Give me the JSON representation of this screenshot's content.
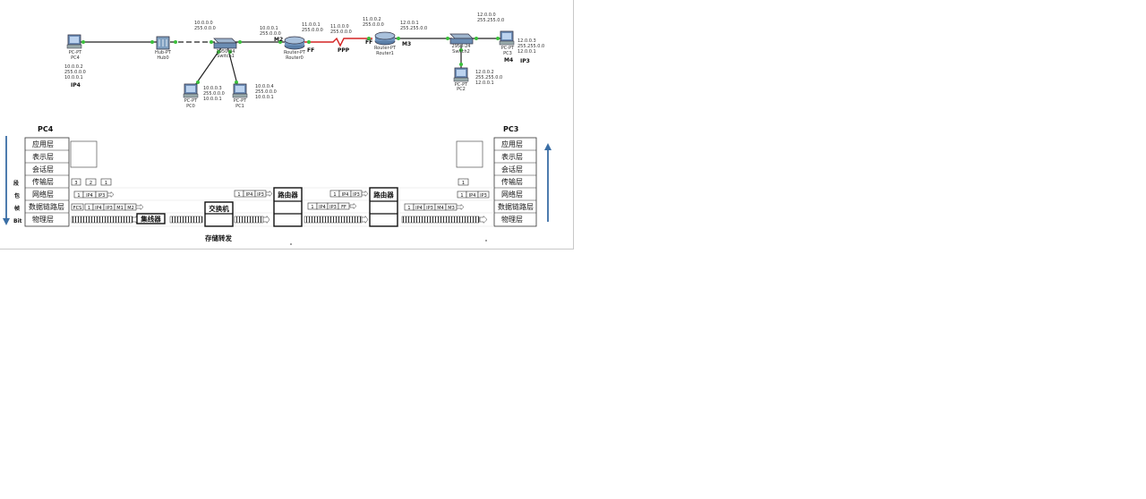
{
  "topology": {
    "devices": {
      "pc4": {
        "type": "PC-PT",
        "name": "PC4"
      },
      "hub0": {
        "type": "Hub-PT",
        "name": "Hub0"
      },
      "switch1": {
        "type": "2950-24",
        "name": "Switch1"
      },
      "pc0": {
        "type": "PC-PT",
        "name": "PC0"
      },
      "pc1": {
        "type": "PC-PT",
        "name": "PC1"
      },
      "router0": {
        "type": "Router-PT",
        "name": "Router0"
      },
      "router1": {
        "type": "Router-PT",
        "name": "Router1"
      },
      "switch2": {
        "type": "2950-24",
        "name": "Switch2"
      },
      "pc3": {
        "type": "PC-PT",
        "name": "PC3"
      },
      "pc2": {
        "type": "PC-PT",
        "name": "PC2"
      }
    },
    "labels": {
      "net10": [
        "10.0.0.0",
        "255.0.0.0"
      ],
      "pc4": [
        "10.0.0.2",
        "255.0.0.0",
        "10.0.0.1"
      ],
      "pc4_tag": "IP4",
      "pc0": [
        "10.0.0.3",
        "255.0.0.0",
        "10.0.0.1"
      ],
      "pc1": [
        "10.0.0.4",
        "255.0.0.0",
        "10.0.0.1"
      ],
      "r0_lan": [
        "10.0.0.1",
        "255.0.0.0"
      ],
      "m2": "M2",
      "r0_wan": [
        "11.0.0.1",
        "255.0.0.0"
      ],
      "ff_left": "FF",
      "net11": [
        "11.0.0.0",
        "255.0.0.0"
      ],
      "ppp": "PPP",
      "r1_wan": [
        "11.0.0.2",
        "255.0.0.0"
      ],
      "ff_right": "FF",
      "r1_lan": [
        "12.0.0.1",
        "255.255.0.0"
      ],
      "m3": "M3",
      "net12": [
        "12.0.0.0",
        "255.255.0.0"
      ],
      "pc3": [
        "12.0.0.3",
        "255.255.0.0",
        "12.0.0.1"
      ],
      "m4": "M4",
      "ip3": "IP3",
      "pc2": [
        "12.0.0.2",
        "255.255.0.0",
        "12.0.0.1"
      ]
    }
  },
  "flow": {
    "left_title": "PC4",
    "right_title": "PC3",
    "left_layers": [
      "应用层",
      "表示层",
      "会话层",
      "传输层",
      "网络层",
      "数据链路层",
      "物理层"
    ],
    "right_layers": [
      "应用层",
      "表示层",
      "会话层",
      "传输层",
      "网络层",
      "数据链路层",
      "物理层"
    ],
    "units": [
      "段",
      "包",
      "帧",
      "Bit"
    ],
    "transport_segments": [
      "3",
      "2",
      "1"
    ],
    "network_packet": [
      "1",
      "IP4",
      "IP3"
    ],
    "datalink_frame": [
      "FCS",
      "1",
      "IP4",
      "IP3",
      "M1",
      "M2"
    ],
    "hub_label": "集线器",
    "switch_label": "交换机",
    "store_forward": "存储转发",
    "router_label": "路由器",
    "r0_packet": [
      "1",
      "IP4",
      "IP3"
    ],
    "ppp_frame": [
      "1",
      "IP4",
      "IP3",
      "FF"
    ],
    "r1_packet": [
      "1",
      "IP4",
      "IP3"
    ],
    "r1_frame": [
      "1",
      "IP4",
      "IP3",
      "M4",
      "M3"
    ],
    "right_segment": "1",
    "right_packet": [
      "1",
      "IP4",
      "IP3"
    ]
  }
}
